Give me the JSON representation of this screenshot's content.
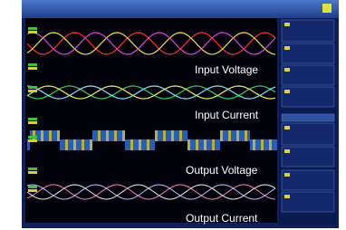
{
  "screen": {
    "labels": [
      "Input Voltage",
      "Input Current",
      "Output Voltage",
      "Output Current"
    ]
  }
}
